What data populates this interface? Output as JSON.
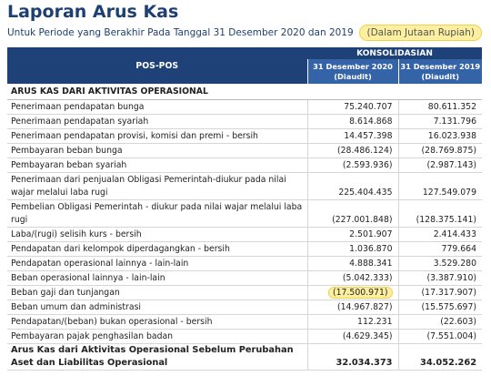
{
  "header": {
    "title": "Laporan Arus Kas",
    "subtitle": "Untuk Periode yang Berakhir Pada Tanggal 31 Desember 2020 dan 2019",
    "unit_note": "(Dalam Jutaan Rupiah)"
  },
  "table": {
    "label_header": "POS-POS",
    "group_header": "KONSOLIDASIAN",
    "columns": [
      {
        "date": "31 Desember 2020",
        "note": "(Diaudit)"
      },
      {
        "date": "31 Desember 2019",
        "note": "(Diaudit)"
      }
    ],
    "section": "ARUS KAS DARI AKTIVITAS OPERASIONAL",
    "rows": [
      [
        "Penerimaan pendapatan bunga",
        "75.240.707",
        "80.611.352"
      ],
      [
        "Penerimaan pendapatan syariah",
        "8.614.868",
        "7.131.796"
      ],
      [
        "Penerimaan pendapatan provisi, komisi dan premi - bersih",
        "14.457.398",
        "16.023.938"
      ],
      [
        "Pembayaran beban bunga",
        "(28.486.124)",
        "(28.769.875)"
      ],
      [
        "Pembayaran beban syariah",
        "(2.593.936)",
        "(2.987.143)"
      ],
      [
        "Penerimaan dari penjualan Obligasi Pemerintah-diukur pada nilai wajar melalui laba rugi",
        "225.404.435",
        "127.549.079"
      ],
      [
        "Pembelian Obligasi Pemerintah - diukur pada nilai wajar melalui laba rugi",
        "(227.001.848)",
        "(128.375.141)"
      ],
      [
        "Laba/(rugi) selisih kurs - bersih",
        "2.501.907",
        "2.414.433"
      ],
      [
        "Pendapatan dari kelompok diperdagangkan - bersih",
        "1.036.870",
        "779.664"
      ],
      [
        "Pendapatan operasional lainnya - lain-lain",
        "4.888.341",
        "3.529.280"
      ],
      [
        "Beban operasional lainnya - lain-lain",
        "(5.042.333)",
        "(3.387.910)"
      ],
      [
        "Beban gaji dan tunjangan",
        "(17.500.971)",
        "(17.317.907)"
      ],
      [
        "Beban umum dan administrasi",
        "(14.967.827)",
        "(15.575.697)"
      ],
      [
        "Pendapatan/(beban) bukan operasional - bersih",
        "112.231",
        "(22.603)"
      ],
      [
        "Pembayaran pajak penghasilan badan",
        "(4.629.345)",
        "(7.551.004)"
      ],
      [
        "Arus Kas dari Aktivitas Operasional Sebelum Perubahan Aset dan Liabilitas Operasional",
        "32.034.373",
        "34.052.262"
      ]
    ]
  }
}
